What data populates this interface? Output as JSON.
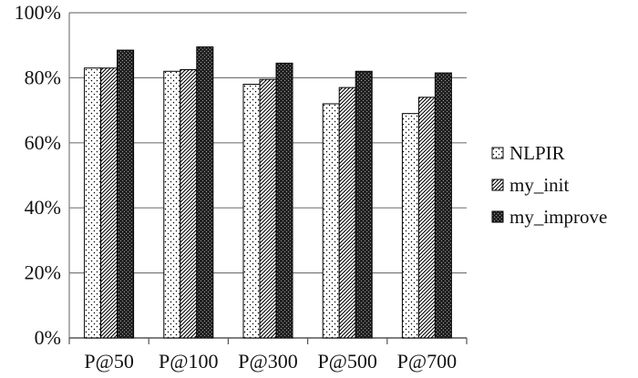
{
  "chart_data": {
    "type": "bar",
    "categories": [
      "P@50",
      "P@100",
      "P@300",
      "P@500",
      "P@700"
    ],
    "series": [
      {
        "name": "NLPIR",
        "values": [
          83,
          82,
          78,
          72,
          69
        ]
      },
      {
        "name": "my_init",
        "values": [
          83,
          82.5,
          79.5,
          77,
          74
        ]
      },
      {
        "name": "my_improve",
        "values": [
          88.5,
          89.5,
          84.5,
          82,
          81.5
        ]
      }
    ],
    "ylim": [
      0,
      100
    ],
    "yticks": [
      "0%",
      "20%",
      "40%",
      "60%",
      "80%",
      "100%"
    ],
    "grid": true,
    "legend_position": "right"
  }
}
